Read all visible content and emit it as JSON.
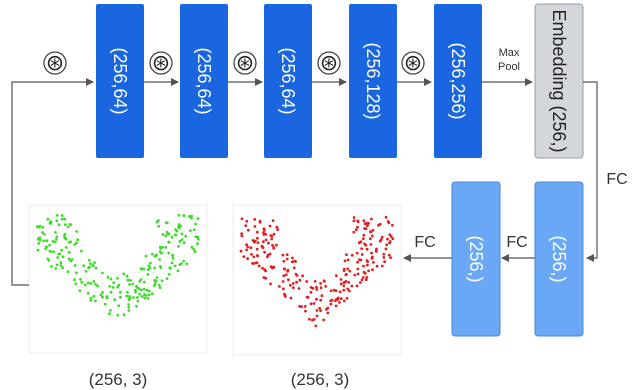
{
  "blocks": [
    {
      "label": "(256,64)"
    },
    {
      "label": "(256,64)"
    },
    {
      "label": "(256,64)"
    },
    {
      "label": "(256,128)"
    },
    {
      "label": "(256,256)"
    }
  ],
  "ops": {
    "conv_symbol": "⊛",
    "maxpool_line1": "Max",
    "maxpool_line2": "Pool",
    "fc": "FC"
  },
  "embedding": {
    "label": "Embedding (256,)"
  },
  "fc_layers": [
    {
      "label": "(256,)"
    },
    {
      "label": "(256,)"
    }
  ],
  "clouds": {
    "input_caption": "(256, 3)",
    "output_caption": "(256, 3)",
    "input_color": "#3ddc2a",
    "output_color": "#e02020"
  },
  "colors": {
    "conv_block": "#1a66e0",
    "fc_block": "#6aa8f5",
    "embedding_block": "#d3d6da",
    "arrow": "#555555"
  }
}
